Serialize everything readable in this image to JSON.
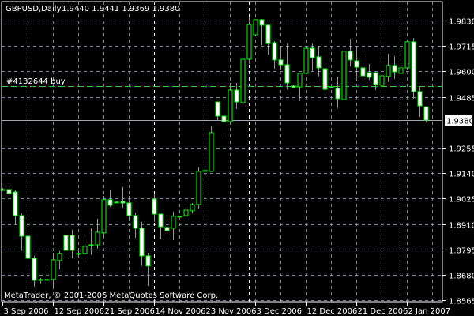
{
  "header": {
    "symbol_period": "GBPUSD,Daily",
    "ohlc": "1.9440 1.9441 1.9369 1.9380"
  },
  "order": {
    "label": "#4132644 buy",
    "price": 1.9534
  },
  "copyright": "MetaTrader, © 2001-2006 MetaQuotes Software Corp.",
  "colors": {
    "background": "#000000",
    "grid": "#778899",
    "candle_outline": "#00ff00",
    "bear_body": "#ffffff",
    "bull_body": "#000000",
    "order_line": "#32cd32",
    "axis": "#ffffff"
  },
  "chart_data": {
    "type": "candlestick",
    "title": "GBPUSD,Daily",
    "grid": true,
    "ylim": [
      1.8565,
      1.983
    ],
    "y_ticks": [
      "1.9830",
      "1.9715",
      "1.9600",
      "1.9485",
      "1.9255",
      "1.9140",
      "1.9025",
      "1.8910",
      "1.8795",
      "1.8680",
      "1.8565"
    ],
    "y_tick_values": [
      1.983,
      1.9715,
      1.96,
      1.9485,
      1.9255,
      1.914,
      1.9025,
      1.891,
      1.8795,
      1.868,
      1.8565
    ],
    "current_price": "1.9380",
    "x_ticks": [
      {
        "label": "3 Sep 2006",
        "bar": 0
      },
      {
        "label": "12 Sep 2006",
        "bar": 8
      },
      {
        "label": "21 Sep 2006",
        "bar": 16
      },
      {
        "label": "14 Nov 2006",
        "bar": 24
      },
      {
        "label": "23 Nov 2006",
        "bar": 32
      },
      {
        "label": "3 Dec 2006",
        "bar": 40
      },
      {
        "label": "12 Dec 2006",
        "bar": 48
      },
      {
        "label": "21 Dec 2006",
        "bar": 56
      },
      {
        "label": "2 Jan 2007",
        "bar": 64
      }
    ],
    "period_separators": [
      24,
      39,
      63
    ],
    "ohlc": [
      [
        1.9066,
        1.9073,
        1.9059,
        1.9066
      ],
      [
        1.9066,
        1.9084,
        1.9023,
        1.9048
      ],
      [
        1.9055,
        1.9062,
        1.8909,
        1.8948
      ],
      [
        1.8948,
        1.8959,
        1.8788,
        1.8855
      ],
      [
        1.8855,
        1.8855,
        1.8705,
        1.8755
      ],
      [
        1.8755,
        1.8766,
        1.8627,
        1.8655
      ],
      [
        1.8659,
        1.8666,
        1.8641,
        1.8655
      ],
      [
        1.8659,
        1.8709,
        1.8602,
        1.8659
      ],
      [
        1.8659,
        1.878,
        1.8627,
        1.8748
      ],
      [
        1.8745,
        1.8788,
        1.8705,
        1.8777
      ],
      [
        1.8859,
        1.8923,
        1.8755,
        1.8791
      ],
      [
        1.8859,
        1.8884,
        1.8755,
        1.8791
      ],
      [
        1.8777,
        1.8798,
        1.8766,
        1.8777
      ],
      [
        1.8777,
        1.8845,
        1.8734,
        1.8809
      ],
      [
        1.8813,
        1.8891,
        1.877,
        1.8816
      ],
      [
        1.8816,
        1.8934,
        1.8798,
        1.8873
      ],
      [
        1.887,
        1.9037,
        1.8852,
        1.902
      ],
      [
        1.902,
        1.9066,
        1.8987,
        1.8995
      ],
      [
        1.9009,
        1.9012,
        1.9005,
        1.9009
      ],
      [
        1.9012,
        1.9077,
        1.8984,
        1.9005
      ],
      [
        1.9005,
        1.9037,
        1.8923,
        1.8948
      ],
      [
        1.8948,
        1.8962,
        1.8848,
        1.8891
      ],
      [
        1.8891,
        1.892,
        1.872,
        1.8766
      ],
      [
        1.8766,
        1.878,
        1.863,
        1.872
      ],
      [
        1.9023,
        1.9045,
        1.892,
        1.8955
      ],
      [
        1.8955,
        1.8955,
        1.8841,
        1.8898
      ],
      [
        1.8895,
        1.8934,
        1.8852,
        1.888
      ],
      [
        1.8891,
        1.8966,
        1.8837,
        1.8945
      ],
      [
        1.8945,
        1.8948,
        1.8941,
        1.8945
      ],
      [
        1.8948,
        1.8987,
        1.8934,
        1.8973
      ],
      [
        1.897,
        1.9005,
        1.8959,
        1.8998
      ],
      [
        1.8998,
        1.9166,
        1.898,
        1.9148
      ],
      [
        1.9152,
        1.9162,
        1.9127,
        1.9152
      ],
      [
        1.9148,
        1.9352,
        1.9145,
        1.9323
      ],
      [
        1.9462,
        1.9462,
        1.9377,
        1.9398
      ],
      [
        1.9398,
        1.9409,
        1.9302,
        1.9373
      ],
      [
        1.9373,
        1.9548,
        1.9366,
        1.9516
      ],
      [
        1.9516,
        1.9548,
        1.943,
        1.9462
      ],
      [
        1.9459,
        1.9698,
        1.9448,
        1.9655
      ],
      [
        1.9655,
        1.9848,
        1.9634,
        1.9812
      ],
      [
        1.9766,
        1.9834,
        1.9759,
        1.9834
      ],
      [
        1.9834,
        1.9837,
        1.9719,
        1.9809
      ],
      [
        1.9809,
        1.9812,
        1.9676,
        1.9726
      ],
      [
        1.973,
        1.9737,
        1.9612,
        1.9652
      ],
      [
        1.9652,
        1.9709,
        1.9609,
        1.963
      ],
      [
        1.963,
        1.9726,
        1.9519,
        1.9548
      ],
      [
        1.9534,
        1.9537,
        1.9523,
        1.9527
      ],
      [
        1.953,
        1.9591,
        1.9466,
        1.9591
      ],
      [
        1.9591,
        1.9709,
        1.9591,
        1.9705
      ],
      [
        1.9705,
        1.9726,
        1.9602,
        1.9662
      ],
      [
        1.9666,
        1.9716,
        1.9577,
        1.9616
      ],
      [
        1.9612,
        1.9666,
        1.9494,
        1.9519
      ],
      [
        1.953,
        1.9534,
        1.9527,
        1.953
      ],
      [
        1.9523,
        1.9577,
        1.9434,
        1.9477
      ],
      [
        1.9473,
        1.9701,
        1.9469,
        1.9691
      ],
      [
        1.9691,
        1.9748,
        1.9623,
        1.9652
      ],
      [
        1.9648,
        1.9701,
        1.9577,
        1.9619
      ],
      [
        1.9616,
        1.968,
        1.9555,
        1.958
      ],
      [
        1.9594,
        1.9634,
        1.9562,
        1.9573
      ],
      [
        1.9594,
        1.9598,
        1.9516,
        1.9541
      ],
      [
        1.9537,
        1.9637,
        1.953,
        1.958
      ],
      [
        1.9577,
        1.968,
        1.9552,
        1.9627
      ],
      [
        1.9627,
        1.9669,
        1.9566,
        1.9598
      ],
      [
        1.9591,
        1.9616,
        1.9587,
        1.9616
      ],
      [
        1.9616,
        1.9737,
        1.9609,
        1.9734
      ],
      [
        1.9734,
        1.9751,
        1.9477,
        1.9509
      ],
      [
        1.9509,
        1.953,
        1.9394,
        1.9444
      ],
      [
        1.944,
        1.9441,
        1.9369,
        1.938
      ]
    ]
  }
}
